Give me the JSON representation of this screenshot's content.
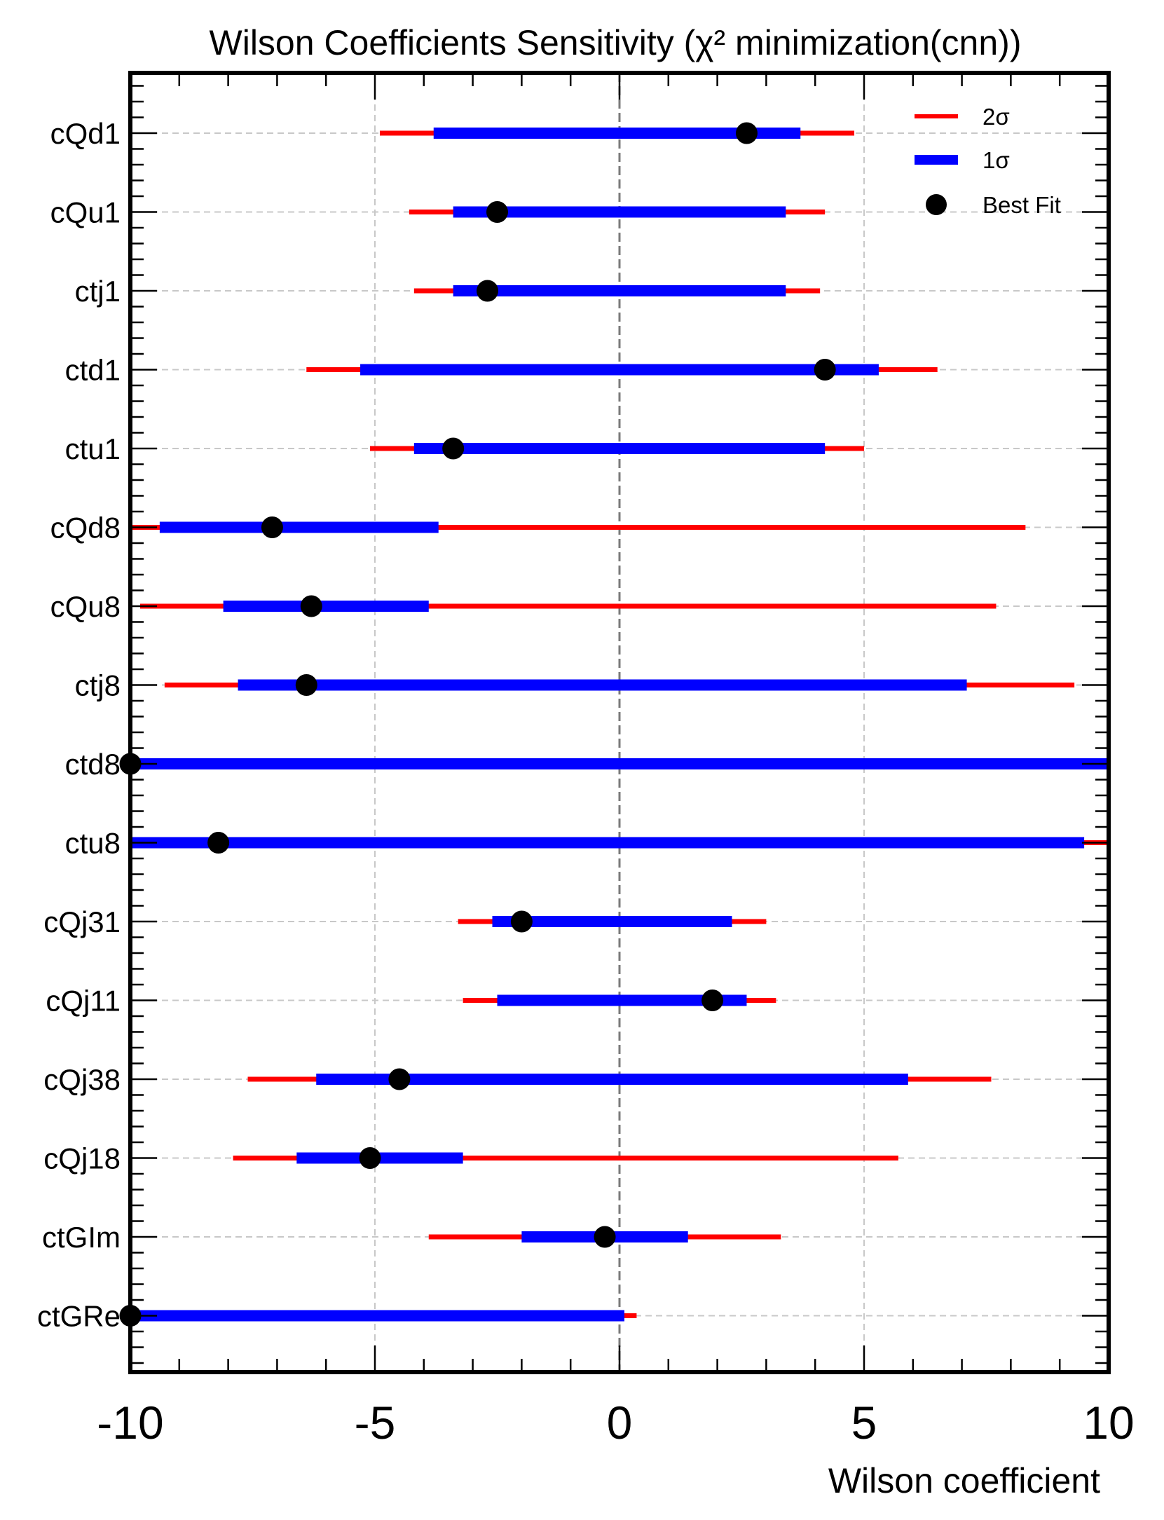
{
  "chart_data": {
    "type": "errorbar",
    "title": "Wilson Coefficients Sensitivity (χ² minimization(cnn))",
    "xlabel": "Wilson coefficient",
    "ylabel": "",
    "xlim": [
      -10,
      10
    ],
    "xticks": [
      -10,
      -5,
      0,
      5,
      10
    ],
    "grid": true,
    "reference_line_x": 0,
    "legend": {
      "position": "top-right",
      "entries": [
        {
          "label": "2σ",
          "color": "#ff0000",
          "marker": "line"
        },
        {
          "label": "1σ",
          "color": "#0000ff",
          "marker": "thick-line"
        },
        {
          "label": "Best Fit",
          "color": "#000000",
          "marker": "circle"
        }
      ]
    },
    "colors": {
      "two_sigma": "#ff0000",
      "one_sigma": "#0000ff",
      "best_fit": "#000000"
    },
    "coefficients": [
      {
        "name": "cQd1",
        "two_sigma": [
          -4.9,
          4.8
        ],
        "one_sigma": [
          -3.8,
          3.7
        ],
        "best_fit": 2.6
      },
      {
        "name": "cQu1",
        "two_sigma": [
          -4.3,
          4.2
        ],
        "one_sigma": [
          -3.4,
          3.4
        ],
        "best_fit": -2.5
      },
      {
        "name": "ctj1",
        "two_sigma": [
          -4.2,
          4.1
        ],
        "one_sigma": [
          -3.4,
          3.4
        ],
        "best_fit": -2.7
      },
      {
        "name": "ctd1",
        "two_sigma": [
          -6.4,
          6.5
        ],
        "one_sigma": [
          -5.3,
          5.3
        ],
        "best_fit": 4.2
      },
      {
        "name": "ctu1",
        "two_sigma": [
          -5.1,
          5.0
        ],
        "one_sigma": [
          -4.2,
          4.2
        ],
        "best_fit": -3.4
      },
      {
        "name": "cQd8",
        "two_sigma": [
          -10.0,
          8.3
        ],
        "one_sigma": [
          -9.4,
          -3.7
        ],
        "best_fit": -7.1
      },
      {
        "name": "cQu8",
        "two_sigma": [
          -9.8,
          7.7
        ],
        "one_sigma": [
          -8.1,
          -3.9
        ],
        "best_fit": -6.3
      },
      {
        "name": "ctj8",
        "two_sigma": [
          -9.3,
          9.3
        ],
        "one_sigma": [
          -7.8,
          7.1
        ],
        "best_fit": -6.4
      },
      {
        "name": "ctd8",
        "two_sigma": [
          -10.0,
          10.0
        ],
        "one_sigma": [
          -10.0,
          10.0
        ],
        "best_fit": -10.0
      },
      {
        "name": "ctu8",
        "two_sigma": [
          -10.0,
          10.0
        ],
        "one_sigma": [
          -10.0,
          9.5
        ],
        "best_fit": -8.2
      },
      {
        "name": "cQj31",
        "two_sigma": [
          -3.3,
          3.0
        ],
        "one_sigma": [
          -2.6,
          2.3
        ],
        "best_fit": -2.0
      },
      {
        "name": "cQj11",
        "two_sigma": [
          -3.2,
          3.2
        ],
        "one_sigma": [
          -2.5,
          2.6
        ],
        "best_fit": 1.9
      },
      {
        "name": "cQj38",
        "two_sigma": [
          -7.6,
          7.6
        ],
        "one_sigma": [
          -6.2,
          5.9
        ],
        "best_fit": -4.5
      },
      {
        "name": "cQj18",
        "two_sigma": [
          -7.9,
          5.7
        ],
        "one_sigma": [
          -6.6,
          -3.2
        ],
        "best_fit": -5.1
      },
      {
        "name": "ctGIm",
        "two_sigma": [
          -3.9,
          3.3
        ],
        "one_sigma": [
          -2.0,
          1.4
        ],
        "best_fit": -0.3
      },
      {
        "name": "ctGRe",
        "two_sigma": [
          -10.0,
          0.35
        ],
        "one_sigma": [
          -10.0,
          0.1
        ],
        "best_fit": -10.0
      }
    ]
  }
}
